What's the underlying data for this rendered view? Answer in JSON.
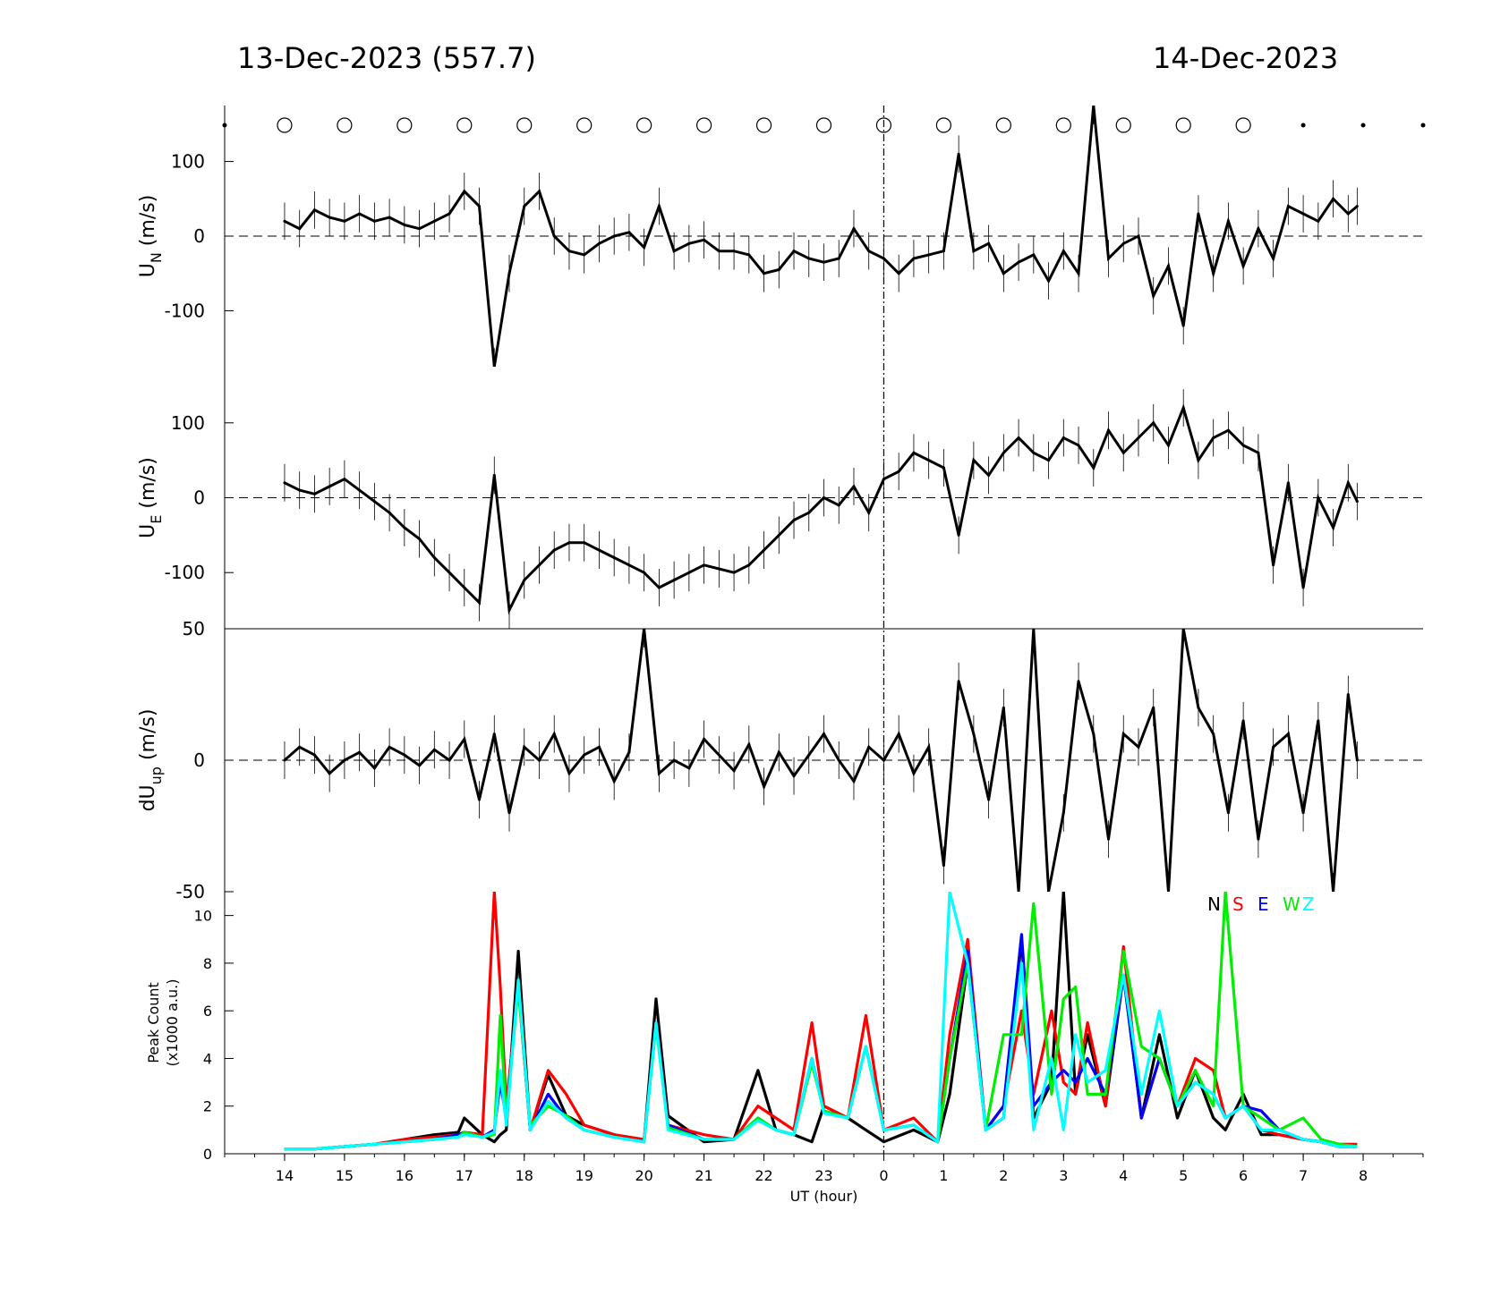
{
  "header": {
    "left_date": "13-Dec-2023 (557.7)",
    "right_date": "14-Dec-2023"
  },
  "colors": {
    "N": "#000000",
    "S": "#ff0000",
    "E": "#0000ff",
    "W": "#00ee00",
    "Z": "#00ffff"
  },
  "chart_data": [
    {
      "type": "line",
      "panel": "U_N",
      "ylabel_main": "U",
      "ylabel_sub": "N",
      "ylabel_unit": "(m/s)",
      "ylim": [
        -175,
        175
      ],
      "yticks": [
        100,
        0,
        -100
      ],
      "ytick_labels": [
        "100",
        "0",
        "-100"
      ],
      "zero_line": "dashed",
      "x": [
        14.0,
        14.25,
        14.5,
        14.75,
        15.0,
        15.25,
        15.5,
        15.75,
        16.0,
        16.25,
        16.5,
        16.75,
        17.0,
        17.25,
        17.5,
        17.75,
        18.0,
        18.25,
        18.5,
        18.75,
        19.0,
        19.25,
        19.5,
        19.75,
        20.0,
        20.25,
        20.5,
        20.75,
        21.0,
        21.25,
        21.5,
        21.75,
        22.0,
        22.25,
        22.5,
        22.75,
        23.0,
        23.25,
        23.5,
        23.75,
        24.0,
        24.25,
        24.5,
        24.75,
        25.0,
        25.25,
        25.5,
        25.75,
        26.0,
        26.25,
        26.5,
        26.75,
        27.0,
        27.25,
        27.5,
        27.75,
        28.0,
        28.25,
        28.5,
        28.75,
        29.0,
        29.25,
        29.5,
        29.75,
        30.0,
        30.25,
        30.5,
        30.75,
        31.0,
        31.25,
        31.5,
        31.75,
        31.9
      ],
      "values": [
        20,
        10,
        35,
        25,
        20,
        30,
        20,
        25,
        15,
        10,
        20,
        30,
        60,
        40,
        -175,
        -50,
        40,
        60,
        0,
        -20,
        -25,
        -10,
        0,
        5,
        -15,
        40,
        -20,
        -10,
        -5,
        -20,
        -20,
        -25,
        -50,
        -45,
        -20,
        -30,
        -35,
        -30,
        10,
        -20,
        -30,
        -50,
        -30,
        -25,
        -20,
        110,
        -20,
        -10,
        -50,
        -35,
        -25,
        -60,
        -20,
        -50,
        175,
        -30,
        -10,
        0,
        -80,
        -40,
        -120,
        30,
        -50,
        20,
        -40,
        10,
        -30,
        40,
        30,
        20,
        50,
        30,
        40
      ],
      "error_bars": "thin vertical bars at each point"
    },
    {
      "type": "line",
      "panel": "U_E",
      "ylabel_main": "U",
      "ylabel_sub": "E",
      "ylabel_unit": "(m/s)",
      "ylim": [
        -175,
        175
      ],
      "yticks": [
        100,
        0,
        -100
      ],
      "ytick_labels": [
        "100",
        "0",
        "-100"
      ],
      "zero_line": "dashed",
      "x": [
        14.0,
        14.25,
        14.5,
        14.75,
        15.0,
        15.25,
        15.5,
        15.75,
        16.0,
        16.25,
        16.5,
        16.75,
        17.0,
        17.25,
        17.5,
        17.75,
        18.0,
        18.25,
        18.5,
        18.75,
        19.0,
        19.25,
        19.5,
        19.75,
        20.0,
        20.25,
        20.5,
        20.75,
        21.0,
        21.25,
        21.5,
        21.75,
        22.0,
        22.25,
        22.5,
        22.75,
        23.0,
        23.25,
        23.5,
        23.75,
        24.0,
        24.25,
        24.5,
        24.75,
        25.0,
        25.25,
        25.5,
        25.75,
        26.0,
        26.25,
        26.5,
        26.75,
        27.0,
        27.25,
        27.5,
        27.75,
        28.0,
        28.25,
        28.5,
        28.75,
        29.0,
        29.25,
        29.5,
        29.75,
        30.0,
        30.25,
        30.5,
        30.75,
        31.0,
        31.25,
        31.5,
        31.75,
        31.9
      ],
      "values": [
        20,
        10,
        5,
        15,
        25,
        10,
        -5,
        -20,
        -40,
        -55,
        -80,
        -100,
        -120,
        -140,
        30,
        -150,
        -110,
        -90,
        -70,
        -60,
        -60,
        -70,
        -80,
        -90,
        -100,
        -120,
        -110,
        -100,
        -90,
        -95,
        -100,
        -90,
        -70,
        -50,
        -30,
        -20,
        0,
        -10,
        15,
        -20,
        25,
        35,
        60,
        50,
        40,
        -50,
        50,
        30,
        60,
        80,
        60,
        50,
        80,
        70,
        40,
        90,
        60,
        80,
        100,
        70,
        120,
        50,
        80,
        90,
        70,
        60,
        -90,
        20,
        -120,
        0,
        -40,
        20,
        -5
      ],
      "error_bars": "thin vertical bars at each point"
    },
    {
      "type": "line",
      "panel": "dU_up",
      "ylabel_main": "dU",
      "ylabel_sub": "up",
      "ylabel_unit": "(m/s)",
      "ylim": [
        -50,
        50
      ],
      "yticks": [
        50,
        0,
        -50
      ],
      "ytick_labels": [
        "50",
        "0",
        "-50"
      ],
      "zero_line": "dashed",
      "x": [
        14.0,
        14.25,
        14.5,
        14.75,
        15.0,
        15.25,
        15.5,
        15.75,
        16.0,
        16.25,
        16.5,
        16.75,
        17.0,
        17.25,
        17.5,
        17.75,
        18.0,
        18.25,
        18.5,
        18.75,
        19.0,
        19.25,
        19.5,
        19.75,
        20.0,
        20.25,
        20.5,
        20.75,
        21.0,
        21.25,
        21.5,
        21.75,
        22.0,
        22.25,
        22.5,
        22.75,
        23.0,
        23.25,
        23.5,
        23.75,
        24.0,
        24.25,
        24.5,
        24.75,
        25.0,
        25.25,
        25.5,
        25.75,
        26.0,
        26.25,
        26.5,
        26.75,
        27.0,
        27.25,
        27.5,
        27.75,
        28.0,
        28.25,
        28.5,
        28.75,
        29.0,
        29.25,
        29.5,
        29.75,
        30.0,
        30.25,
        30.5,
        30.75,
        31.0,
        31.25,
        31.5,
        31.75,
        31.9
      ],
      "values": [
        0,
        5,
        2,
        -5,
        0,
        3,
        -3,
        5,
        2,
        -2,
        4,
        0,
        8,
        -15,
        10,
        -20,
        5,
        0,
        10,
        -5,
        2,
        5,
        -8,
        3,
        50,
        -5,
        0,
        -3,
        8,
        2,
        -4,
        6,
        -10,
        3,
        -6,
        2,
        10,
        0,
        -8,
        5,
        0,
        10,
        -5,
        5,
        -40,
        30,
        10,
        -15,
        20,
        -50,
        50,
        -50,
        -20,
        30,
        10,
        -30,
        10,
        5,
        20,
        -50,
        50,
        20,
        10,
        -20,
        15,
        -30,
        5,
        10,
        -20,
        15,
        -50,
        25,
        0
      ],
      "error_bars": "thin vertical bars at each point"
    },
    {
      "type": "line",
      "panel": "Peak Count",
      "ylabel_line1": "Peak Count",
      "ylabel_line2": "(x1000 a.u.)",
      "xlabel": "UT (hour)",
      "ylim": [
        0,
        11
      ],
      "yticks": [
        0,
        2,
        4,
        6,
        8,
        10
      ],
      "ytick_labels": [
        "0",
        "2",
        "4",
        "6",
        "8",
        "10"
      ],
      "x_tick_labels": [
        "14",
        "15",
        "16",
        "17",
        "18",
        "19",
        "20",
        "21",
        "22",
        "23",
        "0",
        "1",
        "2",
        "3",
        "4",
        "5",
        "6",
        "7",
        "8"
      ],
      "x_ticks_hours": [
        14,
        15,
        16,
        17,
        18,
        19,
        20,
        21,
        22,
        23,
        24,
        25,
        26,
        27,
        28,
        29,
        30,
        31,
        32
      ],
      "xlim_hours": [
        13,
        33
      ],
      "midnight_marker_hour": 24,
      "legend": [
        "N",
        "S",
        "E",
        "W",
        "Z"
      ],
      "legend_position": "top-right",
      "x": [
        14.0,
        14.5,
        15.0,
        15.5,
        16.0,
        16.5,
        16.9,
        17.0,
        17.3,
        17.5,
        17.6,
        17.7,
        17.9,
        18.1,
        18.4,
        18.7,
        19.0,
        19.5,
        20.0,
        20.2,
        20.4,
        21.0,
        21.5,
        21.9,
        22.2,
        22.5,
        22.8,
        23.0,
        23.4,
        23.7,
        24.0,
        24.5,
        24.9,
        25.1,
        25.4,
        25.7,
        26.0,
        26.3,
        26.5,
        26.8,
        27.0,
        27.2,
        27.4,
        27.7,
        28.0,
        28.3,
        28.6,
        28.9,
        29.2,
        29.5,
        29.7,
        30.0,
        30.3,
        30.6,
        31.0,
        31.3,
        31.6,
        31.9
      ],
      "series": [
        {
          "name": "N",
          "values": [
            0.2,
            0.2,
            0.3,
            0.4,
            0.6,
            0.8,
            0.9,
            1.5,
            0.8,
            0.5,
            0.8,
            1.0,
            8.5,
            1.0,
            3.3,
            1.6,
            1.2,
            0.8,
            0.5,
            6.5,
            1.6,
            0.5,
            0.6,
            3.5,
            1.0,
            0.8,
            0.5,
            2.0,
            1.5,
            1.0,
            0.5,
            1.0,
            0.5,
            2.5,
            8.0,
            1.0,
            1.5,
            9.0,
            1.5,
            3.0,
            11.0,
            2.5,
            5.0,
            2.0,
            7.5,
            1.5,
            5.0,
            1.5,
            3.5,
            1.5,
            1.0,
            2.5,
            0.8,
            0.8,
            0.6,
            0.5,
            0.3,
            0.3
          ]
        },
        {
          "name": "S",
          "values": [
            0.2,
            0.2,
            0.3,
            0.4,
            0.6,
            0.7,
            0.8,
            0.9,
            0.8,
            11.0,
            7.0,
            2.0,
            7.0,
            1.0,
            3.5,
            2.5,
            1.2,
            0.8,
            0.6,
            5.5,
            1.2,
            0.8,
            0.6,
            2.0,
            1.5,
            1.0,
            5.5,
            2.0,
            1.5,
            5.8,
            1.0,
            1.5,
            0.5,
            5.0,
            9.0,
            1.0,
            2.0,
            6.0,
            2.5,
            6.0,
            3.0,
            2.5,
            5.5,
            2.0,
            8.7,
            1.5,
            4.0,
            2.0,
            4.0,
            3.5,
            1.5,
            2.0,
            1.0,
            0.8,
            0.6,
            0.5,
            0.4,
            0.4
          ]
        },
        {
          "name": "E",
          "values": [
            0.2,
            0.2,
            0.3,
            0.4,
            0.5,
            0.6,
            0.8,
            0.9,
            0.7,
            1.0,
            3.0,
            1.5,
            7.2,
            1.0,
            2.5,
            1.5,
            1.0,
            0.7,
            0.5,
            5.5,
            1.2,
            0.6,
            0.6,
            1.5,
            1.0,
            0.8,
            4.0,
            1.8,
            1.5,
            4.5,
            1.0,
            1.2,
            0.5,
            4.0,
            8.5,
            1.0,
            2.0,
            9.2,
            2.0,
            3.0,
            3.5,
            3.0,
            4.0,
            2.5,
            7.5,
            1.5,
            4.0,
            2.0,
            3.0,
            2.5,
            1.5,
            2.0,
            1.8,
            1.0,
            0.6,
            0.5,
            0.3,
            0.3
          ]
        },
        {
          "name": "W",
          "values": [
            0.2,
            0.2,
            0.3,
            0.4,
            0.5,
            0.6,
            0.7,
            0.9,
            0.7,
            0.8,
            5.8,
            1.5,
            7.0,
            1.2,
            2.0,
            1.6,
            1.0,
            0.7,
            0.5,
            5.4,
            1.1,
            0.6,
            0.6,
            1.5,
            1.0,
            0.8,
            3.8,
            1.8,
            1.5,
            4.5,
            1.0,
            1.2,
            0.5,
            4.0,
            8.0,
            1.0,
            5.0,
            5.0,
            10.5,
            2.5,
            6.5,
            7.0,
            2.5,
            2.5,
            8.5,
            4.5,
            4.0,
            2.0,
            3.5,
            2.0,
            11.0,
            2.0,
            1.5,
            1.0,
            1.5,
            0.6,
            0.4,
            0.3
          ]
        },
        {
          "name": "Z",
          "values": [
            0.2,
            0.2,
            0.3,
            0.4,
            0.5,
            0.6,
            0.7,
            0.8,
            0.7,
            0.9,
            3.5,
            1.2,
            7.3,
            1.0,
            2.2,
            1.5,
            1.0,
            0.7,
            0.5,
            5.5,
            1.0,
            0.6,
            0.6,
            1.4,
            1.0,
            0.8,
            4.0,
            1.7,
            1.5,
            4.5,
            1.0,
            1.2,
            0.5,
            11.0,
            8.0,
            1.0,
            1.5,
            8.0,
            1.0,
            4.0,
            1.0,
            5.0,
            3.0,
            3.5,
            7.5,
            2.5,
            6.0,
            2.0,
            3.0,
            2.5,
            1.5,
            2.0,
            1.0,
            1.0,
            0.6,
            0.5,
            0.3,
            0.3
          ]
        }
      ]
    }
  ],
  "circle_markers": {
    "open_circle_hours": [
      14,
      15,
      16,
      17,
      18,
      19,
      20,
      21,
      22,
      23,
      24,
      25,
      26,
      27,
      28,
      29,
      30
    ],
    "dot_hours": [
      13,
      31,
      32,
      33
    ]
  }
}
